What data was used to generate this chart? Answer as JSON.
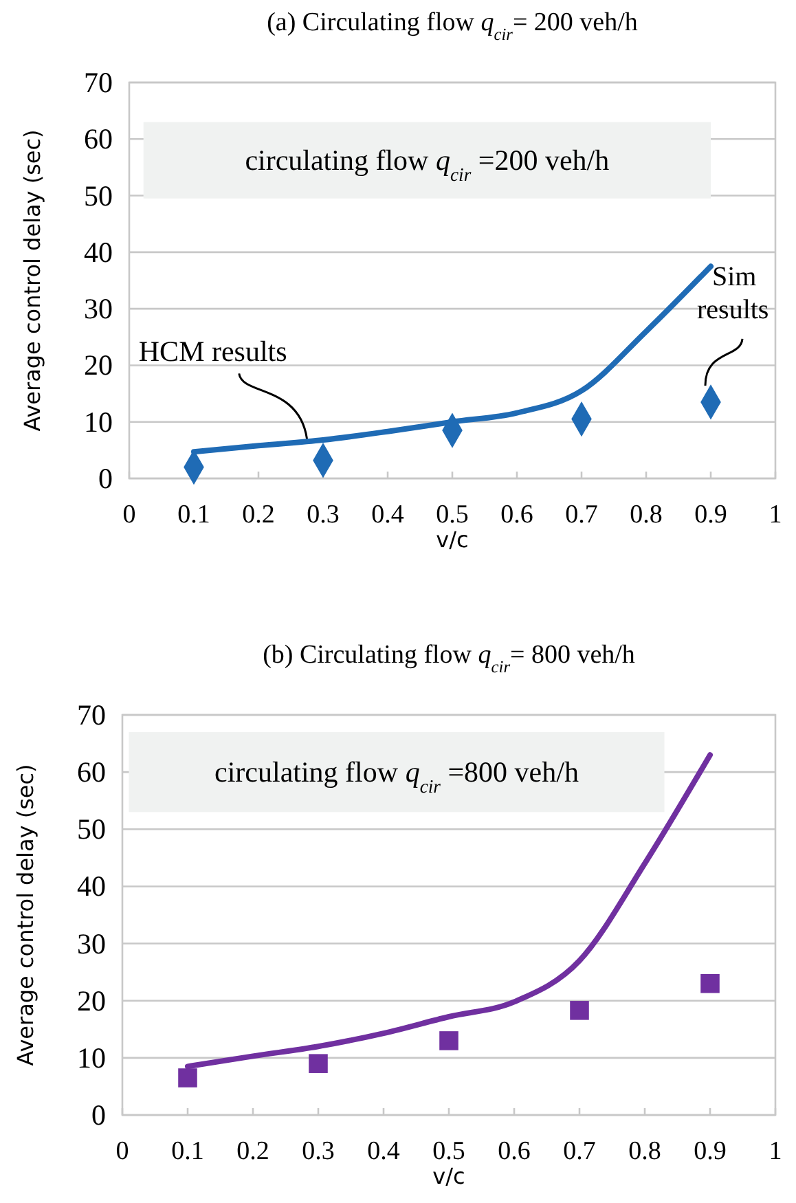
{
  "chart_data": [
    {
      "type": "line",
      "title": "(a) Circulating flow q$_{cir}$= 200 veh/h",
      "xlabel": "v/c",
      "ylabel": "Average control delay (sec)",
      "x": [
        0.1,
        0.2,
        0.3,
        0.4,
        0.5,
        0.6,
        0.7,
        0.8,
        0.9
      ],
      "series": [
        {
          "name": "HCM results",
          "color": "#1f6bb5",
          "marker": "none",
          "values": [
            4.7,
            5.8,
            6.8,
            8.3,
            10,
            11.6,
            15.5,
            26,
            37.5
          ]
        },
        {
          "type": "scatter",
          "name": "Sim results",
          "color": "#1f6bb5",
          "marker": "diamond",
          "x": [
            0.1,
            0.3,
            0.5,
            0.7,
            0.9
          ],
          "values": [
            2,
            3.2,
            8.5,
            10.5,
            13.5
          ]
        }
      ],
      "xlim": [
        0,
        1
      ],
      "xticks": [
        0,
        0.1,
        0.2,
        0.3,
        0.4,
        0.5,
        0.6,
        0.7,
        0.8,
        0.9,
        1
      ],
      "ylim": [
        0,
        70
      ],
      "yticks": [
        0,
        10,
        20,
        30,
        40,
        50,
        60,
        70
      ],
      "grid": "y",
      "annotations": [
        "circulating  flow q$_{cir}$ =200 veh/h"
      ]
    },
    {
      "type": "line",
      "title": "(b) Circulating flow q$_{cir}$= 800 veh/h",
      "xlabel": "v/c",
      "ylabel": "Average control delay (sec)",
      "x": [
        0.1,
        0.2,
        0.3,
        0.4,
        0.5,
        0.6,
        0.7,
        0.8,
        0.9
      ],
      "series": [
        {
          "color": "#7030a0",
          "marker": "none",
          "values": [
            8.5,
            10.3,
            12,
            14.3,
            17.2,
            19.8,
            27,
            44,
            63
          ]
        },
        {
          "type": "scatter",
          "color": "#7030a0",
          "marker": "square",
          "x": [
            0.1,
            0.3,
            0.5,
            0.7,
            0.9
          ],
          "values": [
            6.5,
            9,
            13,
            18.3,
            23
          ]
        }
      ],
      "xlim": [
        0,
        1
      ],
      "xticks": [
        0,
        0.1,
        0.2,
        0.3,
        0.4,
        0.5,
        0.6,
        0.7,
        0.8,
        0.9,
        1
      ],
      "ylim": [
        0,
        70
      ],
      "yticks": [
        0,
        10,
        20,
        30,
        40,
        50,
        60,
        70
      ],
      "grid": "y",
      "annotations": [
        "circulating  flow q$_{cir}$ =800 veh/h"
      ]
    }
  ]
}
